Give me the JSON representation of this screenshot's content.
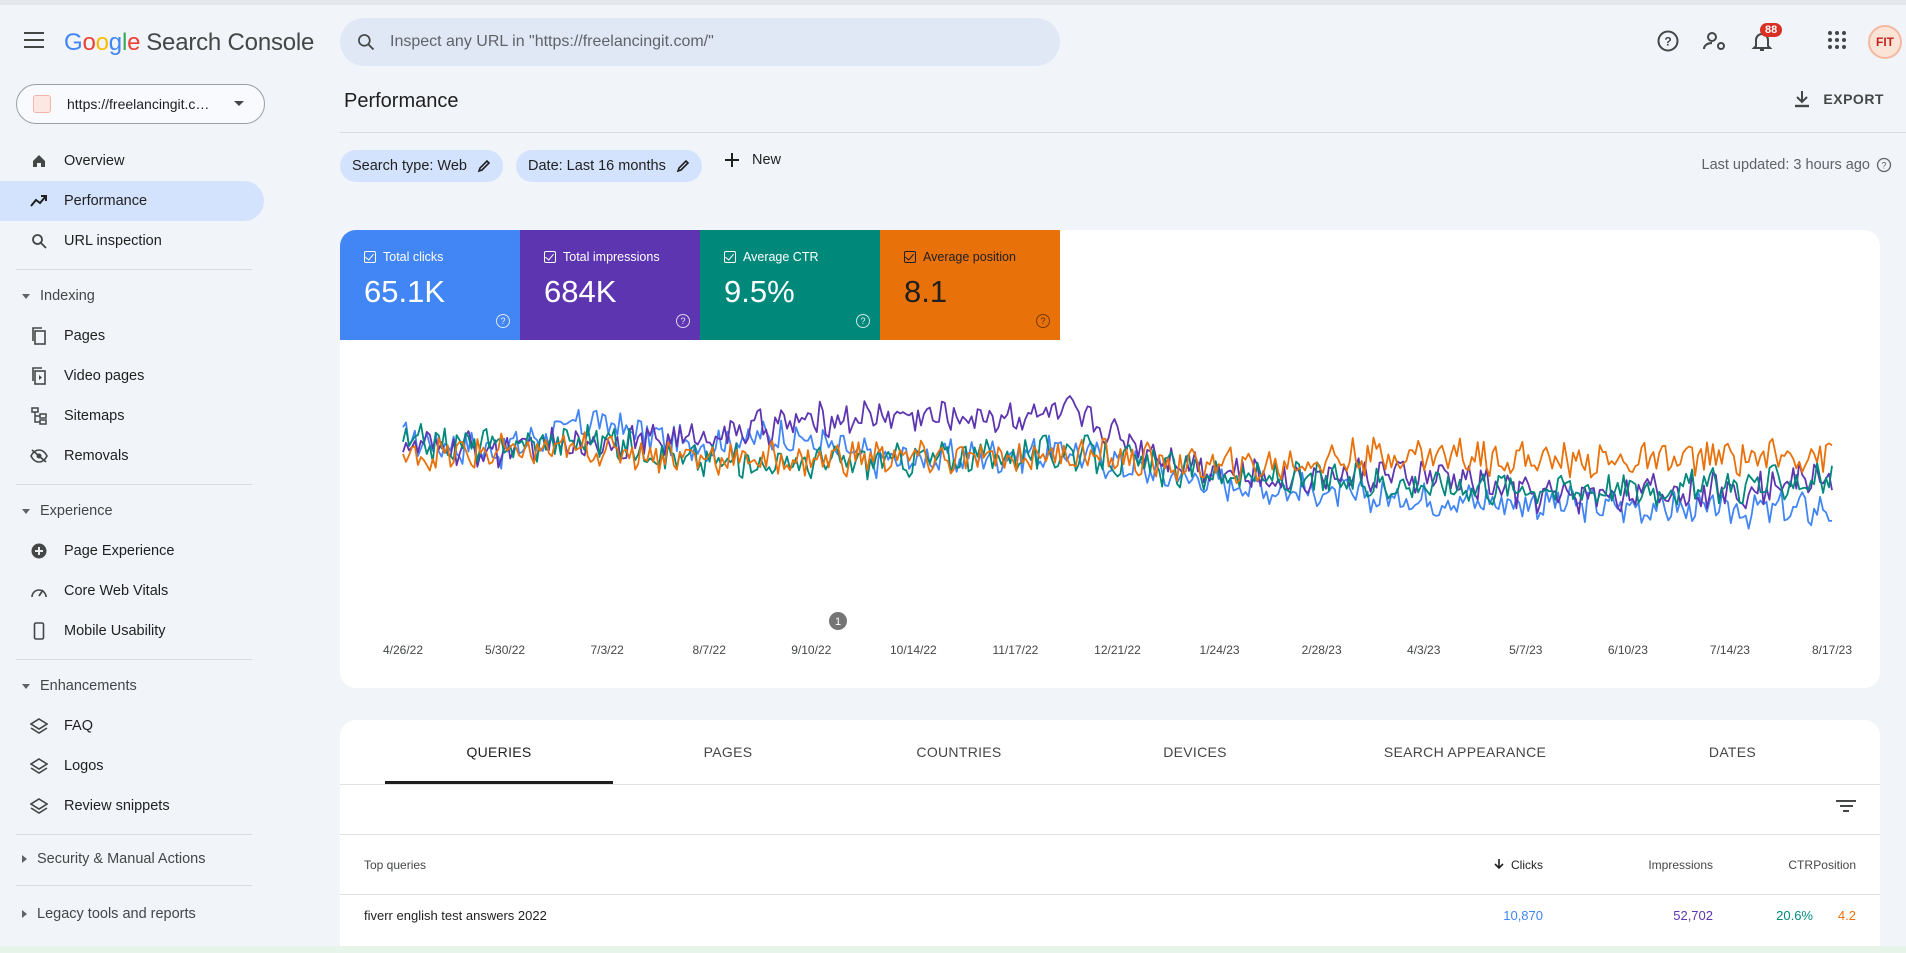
{
  "app": {
    "logo": {
      "g1": "G",
      "g2": "o",
      "g3": "o",
      "g4": "g",
      "g5": "l",
      "g6": "e",
      "product": "Search Console"
    },
    "search_placeholder": "Inspect any URL in \"https://freelancingit.com/\"",
    "notification_count": "88",
    "avatar_text": "FIT"
  },
  "sidebar": {
    "property": "https://freelancingit.com/",
    "items": [
      {
        "label": "Overview",
        "icon": "home-icon"
      },
      {
        "label": "Performance",
        "icon": "trending-up-icon",
        "active": true
      },
      {
        "label": "URL inspection",
        "icon": "search-icon"
      }
    ],
    "sections": [
      {
        "title": "Indexing",
        "items": [
          "Pages",
          "Video pages",
          "Sitemaps",
          "Removals"
        ]
      },
      {
        "title": "Experience",
        "items": [
          "Page Experience",
          "Core Web Vitals",
          "Mobile Usability"
        ]
      },
      {
        "title": "Enhancements",
        "items": [
          "FAQ",
          "Logos",
          "Review snippets"
        ]
      }
    ],
    "collapsed_sections": [
      "Security & Manual Actions",
      "Legacy tools and reports"
    ]
  },
  "main": {
    "title": "Performance",
    "export_label": "EXPORT",
    "filters": {
      "search_type": "Search type: Web",
      "date": "Date: Last 16 months",
      "new_label": "New"
    },
    "last_updated": "Last updated: 3 hours ago",
    "metrics": [
      {
        "label": "Total clicks",
        "value": "65.1K",
        "color": "#4285f4"
      },
      {
        "label": "Total impressions",
        "value": "684K",
        "color": "#5e35b1"
      },
      {
        "label": "Average CTR",
        "value": "9.5%",
        "color": "#00897b"
      },
      {
        "label": "Average position",
        "value": "8.1",
        "color": "#e8710a"
      }
    ],
    "annotation_marker": "1",
    "tabs": [
      "QUERIES",
      "PAGES",
      "COUNTRIES",
      "DEVICES",
      "SEARCH APPEARANCE",
      "DATES"
    ],
    "table": {
      "columns": [
        "Top queries",
        "Clicks",
        "Impressions",
        "CTR",
        "Position"
      ],
      "rows": [
        {
          "query": "fiverr english test answers 2022",
          "clicks": "10,870",
          "impressions": "52,702",
          "ctr": "20.6%",
          "position": "4.2"
        }
      ]
    }
  },
  "chart_data": {
    "type": "line",
    "x_tick_labels": [
      "4/26/22",
      "5/30/22",
      "7/3/22",
      "8/7/22",
      "9/10/22",
      "10/14/22",
      "11/17/22",
      "12/21/22",
      "1/24/23",
      "2/28/23",
      "4/3/23",
      "5/7/23",
      "6/10/23",
      "7/14/23",
      "8/17/23"
    ],
    "series": [
      {
        "name": "Total clicks",
        "color": "#4285f4",
        "values": [
          0.62,
          0.55,
          0.72,
          0.58,
          0.64,
          0.5,
          0.52,
          0.55,
          0.42,
          0.35,
          0.3,
          0.28,
          0.26,
          0.24,
          0.22,
          0.23
        ]
      },
      {
        "name": "Total impressions",
        "color": "#5e35b1",
        "values": [
          0.58,
          0.55,
          0.6,
          0.62,
          0.7,
          0.75,
          0.74,
          0.76,
          0.52,
          0.4,
          0.42,
          0.4,
          0.3,
          0.32,
          0.33,
          0.42
        ]
      },
      {
        "name": "Average CTR",
        "color": "#00897b",
        "values": [
          0.6,
          0.58,
          0.62,
          0.5,
          0.48,
          0.5,
          0.52,
          0.55,
          0.45,
          0.4,
          0.38,
          0.36,
          0.35,
          0.34,
          0.36,
          0.4
        ]
      },
      {
        "name": "Average position",
        "color": "#e8710a",
        "values": [
          0.52,
          0.54,
          0.56,
          0.52,
          0.5,
          0.52,
          0.5,
          0.54,
          0.48,
          0.46,
          0.52,
          0.53,
          0.5,
          0.49,
          0.52,
          0.53
        ]
      }
    ]
  }
}
